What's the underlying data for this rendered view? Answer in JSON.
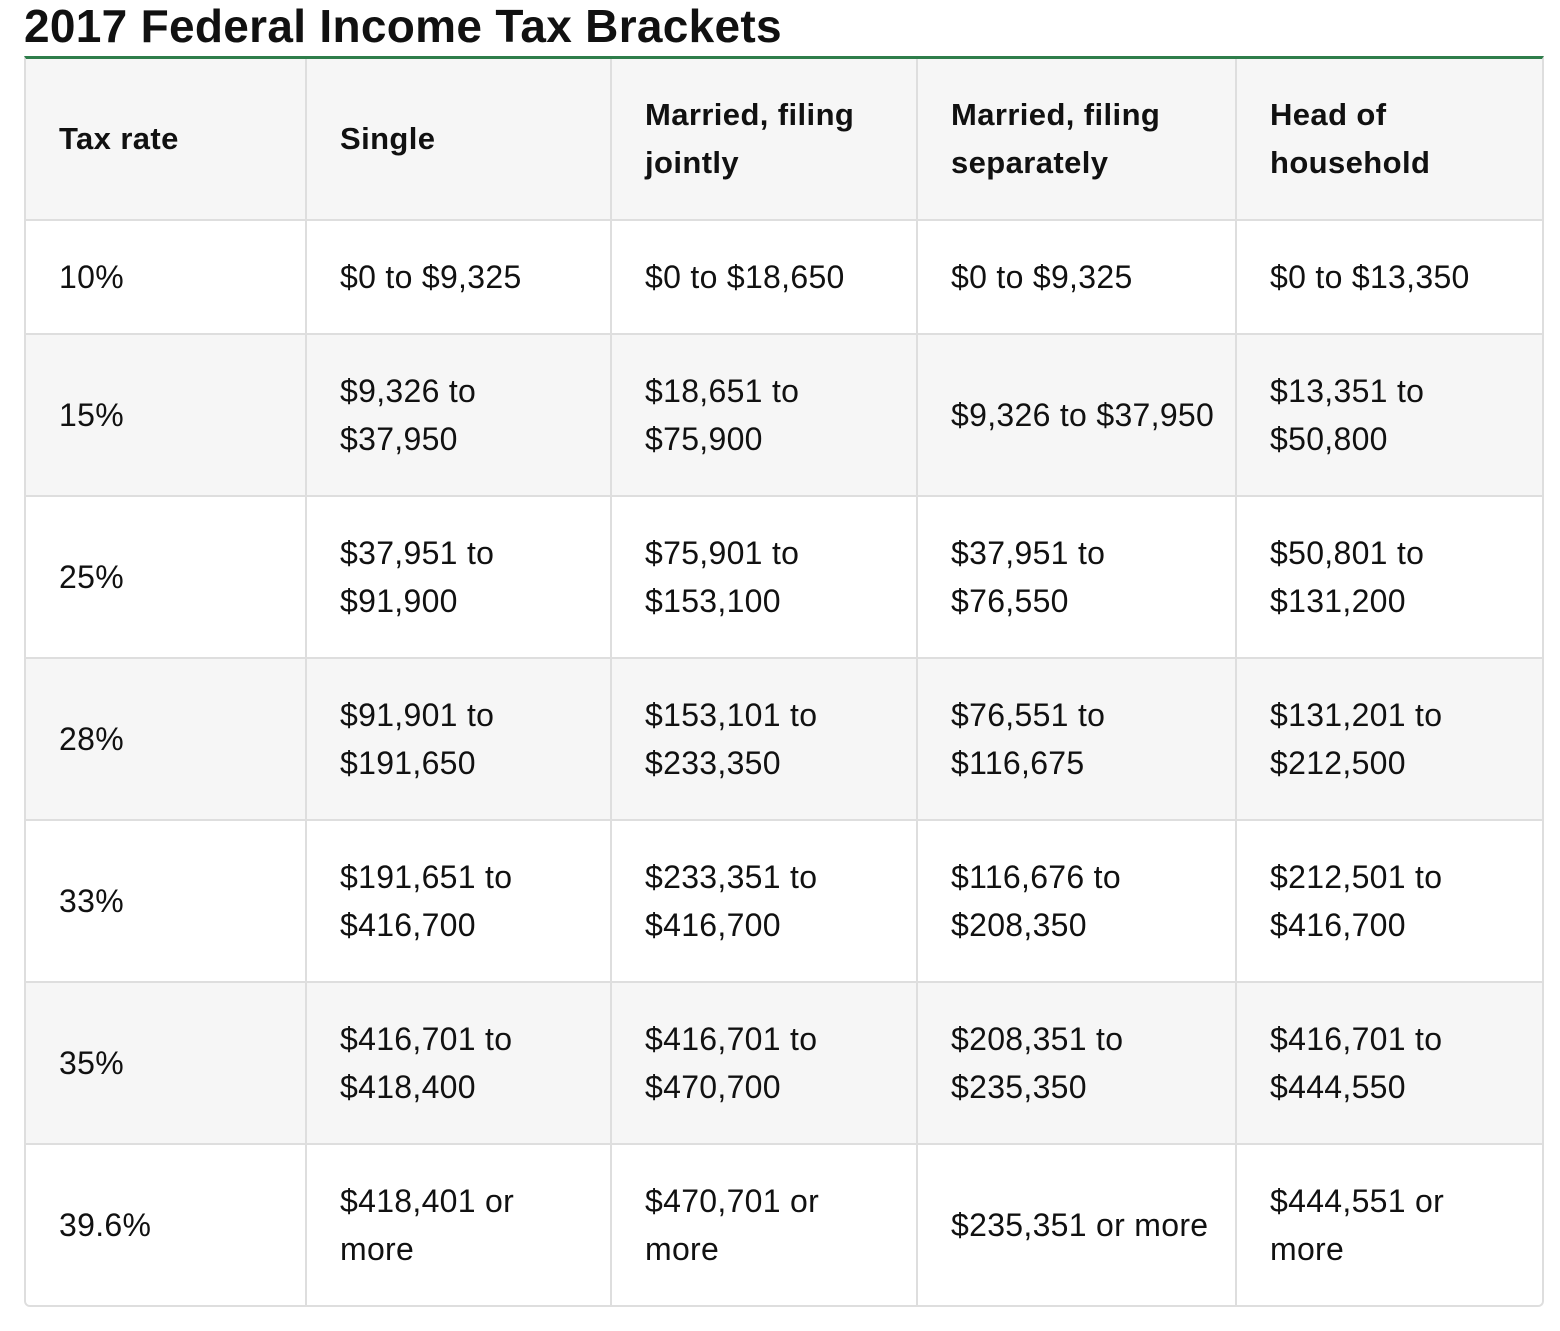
{
  "title": "2017 Federal Income Tax Brackets",
  "table": {
    "headers": [
      "Tax rate",
      "Single",
      "Married, filing jointly",
      "Married, filing separately",
      "Head of household"
    ],
    "rows": [
      [
        "10%",
        "$0 to $9,325",
        "$0 to $18,650",
        "$0 to $9,325",
        "$0 to $13,350"
      ],
      [
        "15%",
        "$9,326 to $37,950",
        "$18,651 to $75,900",
        "$9,326 to $37,950",
        "$13,351 to $50,800"
      ],
      [
        "25%",
        "$37,951 to $91,900",
        "$75,901 to $153,100",
        "$37,951 to $76,550",
        "$50,801 to $131,200"
      ],
      [
        "28%",
        "$91,901 to $191,650",
        "$153,101 to $233,350",
        "$76,551 to $116,675",
        "$131,201 to $212,500"
      ],
      [
        "33%",
        "$191,651 to $416,700",
        "$233,351 to $416,700",
        "$116,676 to $208,350",
        "$212,501 to $416,700"
      ],
      [
        "35%",
        "$416,701 to $418,400",
        "$416,701 to $470,700",
        "$208,351 to $235,350",
        "$416,701 to $444,550"
      ],
      [
        "39.6%",
        "$418,401 or more",
        "$470,701 or more",
        "$235,351 or more",
        "$444,551 or more"
      ]
    ]
  },
  "colors": {
    "accent_rule": "#2e7d4a",
    "header_bg": "#f6f6f6",
    "stripe_bg": "#f6f6f6",
    "grid": "#dedede",
    "text": "#111111"
  }
}
